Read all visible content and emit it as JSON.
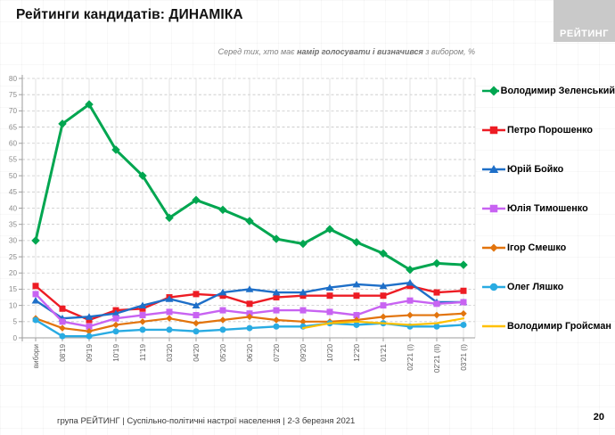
{
  "header": {
    "title": "Рейтинги кандидатів: ДИНАМІКА",
    "logo": "РЕЙТИНГ"
  },
  "subtitle": {
    "prefix": "Серед тих, хто має ",
    "bold": "намір голосувати і визначився",
    "suffix": " з вибором, %"
  },
  "chart_data": {
    "type": "line",
    "categories": [
      "вибори",
      "08'19",
      "09'19",
      "10'19",
      "11'19",
      "03'20",
      "04'20",
      "05'20",
      "06'20",
      "07'20",
      "09'20",
      "10'20",
      "12'20",
      "01'21",
      "02'21 (І)",
      "02'21 (ІІ)",
      "03'21 (І)"
    ],
    "series": [
      {
        "name": "Володимир Зеленський",
        "color": "#00A650",
        "marker": "diamond",
        "marker_size": 9.5,
        "stroke_width": 3,
        "values": [
          30,
          66,
          72,
          58,
          50,
          37,
          42.5,
          39.5,
          36,
          30.5,
          29,
          33.5,
          29.5,
          26,
          21,
          23,
          22.5
        ]
      },
      {
        "name": "Петро Порошенко",
        "color": "#ED1C24",
        "marker": "square",
        "marker_size": 7,
        "stroke_width": 2.4,
        "values": [
          16,
          9,
          5.5,
          8.5,
          9,
          12.5,
          13.5,
          13,
          10.5,
          12.5,
          13,
          13,
          13,
          13,
          16,
          14,
          14.5
        ]
      },
      {
        "name": "Юрій Бойко",
        "color": "#1E6FC8",
        "marker": "triangle",
        "marker_size": 8,
        "stroke_width": 2.4,
        "values": [
          11.5,
          6,
          6.5,
          7.5,
          10,
          12,
          10,
          14,
          15,
          14,
          14,
          15.5,
          16.5,
          16,
          17,
          11,
          11
        ]
      },
      {
        "name": "Юлія Тимошенко",
        "color": "#C863F2",
        "marker": "square",
        "marker_size": 7,
        "stroke_width": 2.4,
        "values": [
          13.5,
          5,
          3.5,
          6,
          7,
          8,
          7,
          8.5,
          7.5,
          8.5,
          8.5,
          8,
          7,
          10,
          11.5,
          10.5,
          11
        ]
      },
      {
        "name": "Ігор Смешко",
        "color": "#E2740D",
        "marker": "diamond",
        "marker_size": 7.5,
        "stroke_width": 2.2,
        "values": [
          6,
          3,
          2,
          4,
          5,
          6,
          4.5,
          5.5,
          6.5,
          5.5,
          5,
          5,
          5.5,
          6.5,
          7,
          7,
          7.5
        ]
      },
      {
        "name": "Олег Ляшко",
        "color": "#29ABE2",
        "marker": "circle",
        "marker_size": 7,
        "stroke_width": 2.4,
        "values": [
          5.5,
          0.5,
          0.5,
          2,
          2.5,
          2.5,
          2,
          2.5,
          3,
          3.5,
          3.5,
          4.5,
          4,
          4.5,
          3.5,
          3.5,
          4
        ]
      },
      {
        "name": "Володимир Гройсман",
        "color": "#FFC000",
        "marker": null,
        "marker_size": 0,
        "stroke_width": 2.2,
        "values": [
          null,
          null,
          null,
          null,
          null,
          null,
          null,
          null,
          null,
          null,
          3,
          4.5,
          5,
          4.5,
          4,
          4.5,
          6
        ]
      }
    ],
    "ylim": [
      0,
      80
    ],
    "ytick_step": 5,
    "grid": "horizontal-dashed, vertical-solid per category",
    "legend_position": "right",
    "x_labels_rotated": true
  },
  "footer": {
    "text": "група РЕЙТИНГ | Суспільно-політичні настрої населення | 2-3 березня 2021",
    "page": "20"
  }
}
